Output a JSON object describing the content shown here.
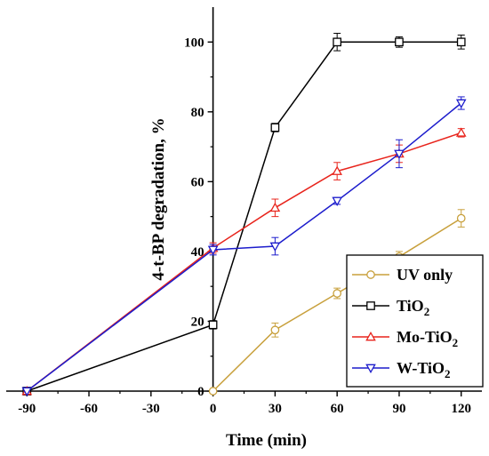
{
  "chart_data": {
    "type": "line",
    "title": "",
    "xlabel": "Time (min)",
    "ylabel": "4-t-BP degradation, %",
    "xlim": [
      -100,
      130
    ],
    "ylim": [
      0,
      110
    ],
    "xticks": [
      -90,
      -60,
      -30,
      0,
      30,
      60,
      90,
      120
    ],
    "yticks": [
      0,
      20,
      40,
      60,
      80,
      100
    ],
    "grid": false,
    "legend_position": "bottom-right",
    "series": [
      {
        "name": "UV only",
        "name_main": "UV only",
        "name_sub": "",
        "name_tail": "",
        "color": "#C8A03C",
        "marker": "circle",
        "points": [
          [
            0,
            0
          ],
          [
            30,
            17.5
          ],
          [
            60,
            28
          ],
          [
            90,
            38.5
          ],
          [
            120,
            49.5
          ]
        ],
        "errors": [
          0,
          2,
          1.5,
          1.5,
          2.5
        ]
      },
      {
        "name": "TiO2",
        "name_main": "TiO",
        "name_sub": "2",
        "name_tail": "",
        "color": "#000000",
        "marker": "square",
        "points": [
          [
            -90,
            0
          ],
          [
            0,
            19
          ],
          [
            30,
            75.5
          ],
          [
            60,
            100
          ],
          [
            90,
            100
          ],
          [
            120,
            100
          ]
        ],
        "errors": [
          0,
          1.2,
          1.2,
          2.5,
          1.5,
          2
        ]
      },
      {
        "name": "Mo-TiO2",
        "name_main": "Mo-TiO",
        "name_sub": "2",
        "name_tail": "",
        "color": "#E8241C",
        "marker": "triangle-up",
        "points": [
          [
            -90,
            0
          ],
          [
            0,
            41
          ],
          [
            30,
            52.5
          ],
          [
            60,
            63
          ],
          [
            90,
            68
          ],
          [
            120,
            74
          ]
        ],
        "errors": [
          0,
          1.5,
          2.5,
          2.5,
          2.5,
          1.2
        ]
      },
      {
        "name": "W-TiO2",
        "name_main": "W-TiO",
        "name_sub": "2",
        "name_tail": "",
        "color": "#1C1CCC",
        "marker": "triangle-down",
        "points": [
          [
            -90,
            0
          ],
          [
            0,
            40.5
          ],
          [
            30,
            41.5
          ],
          [
            60,
            54.5
          ],
          [
            90,
            68
          ],
          [
            120,
            82.5
          ]
        ],
        "errors": [
          0,
          1.5,
          2.5,
          1,
          4,
          1.8
        ]
      }
    ]
  }
}
